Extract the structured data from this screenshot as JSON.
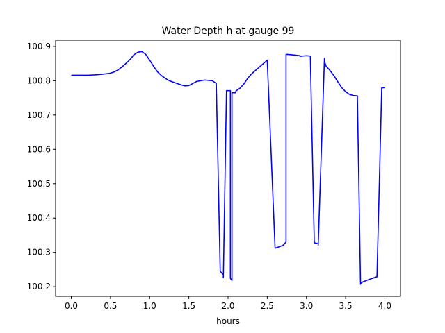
{
  "chart_data": {
    "type": "line",
    "title": "Water Depth h at gauge 99",
    "xlabel": "hours",
    "ylabel": "",
    "xlim": [
      -0.2,
      4.2
    ],
    "ylim": [
      100.172,
      100.918
    ],
    "xticks": [
      0.0,
      0.5,
      1.0,
      1.5,
      2.0,
      2.5,
      3.0,
      3.5,
      4.0
    ],
    "xtick_labels": [
      "0.0",
      "0.5",
      "1.0",
      "1.5",
      "2.0",
      "2.5",
      "3.0",
      "3.5",
      "4.0"
    ],
    "yticks": [
      100.2,
      100.3,
      100.4,
      100.5,
      100.6,
      100.7,
      100.8,
      100.9
    ],
    "ytick_labels": [
      "100.2",
      "100.3",
      "100.4",
      "100.5",
      "100.6",
      "100.7",
      "100.8",
      "100.9"
    ],
    "grid": false,
    "series": [
      {
        "color": "#0000ff",
        "x": [
          0.0,
          0.1,
          0.2,
          0.3,
          0.4,
          0.5,
          0.55,
          0.6,
          0.65,
          0.7,
          0.75,
          0.8,
          0.85,
          0.9,
          0.95,
          1.0,
          1.05,
          1.1,
          1.15,
          1.2,
          1.25,
          1.3,
          1.35,
          1.4,
          1.45,
          1.5,
          1.55,
          1.6,
          1.65,
          1.7,
          1.8,
          1.85,
          1.9,
          1.94,
          1.94,
          1.98,
          2.03,
          2.03,
          2.05,
          2.05,
          2.1,
          2.1,
          2.15,
          2.2,
          2.25,
          2.3,
          2.35,
          2.4,
          2.5,
          2.6,
          2.7,
          2.74,
          2.74,
          2.8,
          2.92,
          2.92,
          2.95,
          3.0,
          3.05,
          3.1,
          3.15,
          3.15,
          3.23,
          3.23,
          3.25,
          3.3,
          3.35,
          3.4,
          3.45,
          3.5,
          3.55,
          3.6,
          3.65,
          3.69,
          3.69,
          3.72,
          3.8,
          3.9,
          3.96,
          3.96,
          4.0
        ],
        "y": [
          100.816,
          100.816,
          100.816,
          100.817,
          100.819,
          100.822,
          100.826,
          100.832,
          100.841,
          100.851,
          100.862,
          100.876,
          100.883,
          100.885,
          100.877,
          100.86,
          100.842,
          100.826,
          100.815,
          100.807,
          100.8,
          100.796,
          100.792,
          100.788,
          100.785,
          100.786,
          100.792,
          100.798,
          100.8,
          100.802,
          100.8,
          100.792,
          100.245,
          100.235,
          100.226,
          100.771,
          100.771,
          100.224,
          100.218,
          100.765,
          100.765,
          100.77,
          100.778,
          100.79,
          100.807,
          100.82,
          100.83,
          100.84,
          100.86,
          100.312,
          100.32,
          100.33,
          100.877,
          100.876,
          100.873,
          100.871,
          100.872,
          100.873,
          100.872,
          100.328,
          100.325,
          100.321,
          100.865,
          100.857,
          100.843,
          100.83,
          100.815,
          100.797,
          100.78,
          100.768,
          100.76,
          100.757,
          100.756,
          100.207,
          100.209,
          100.214,
          100.221,
          100.229,
          100.775,
          100.779,
          100.78
        ]
      }
    ]
  }
}
